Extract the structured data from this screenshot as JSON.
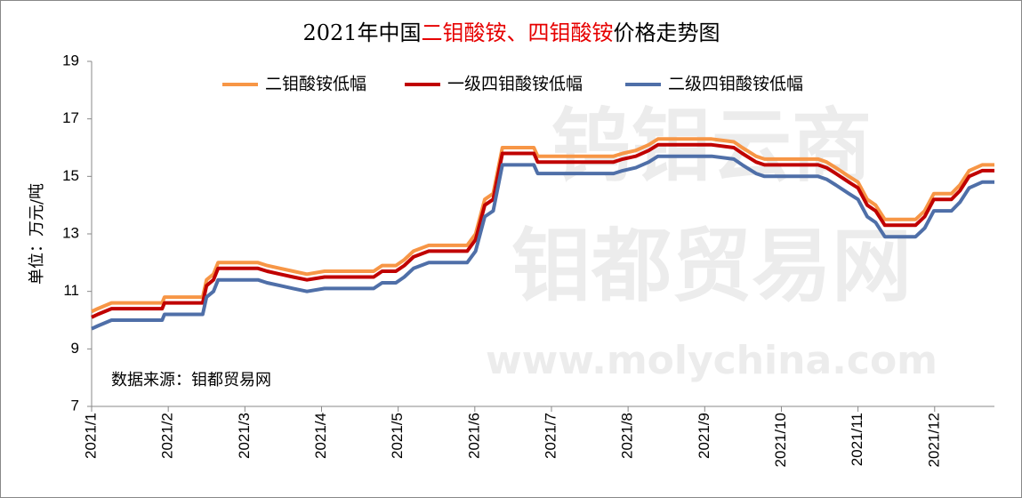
{
  "chart_data": {
    "type": "line",
    "title": [
      {
        "text": "2021年中国",
        "color": "#000000"
      },
      {
        "text": "二钼酸铵、四钼酸铵",
        "color": "#e60000"
      },
      {
        "text": "价格走势图",
        "color": "#000000"
      }
    ],
    "y_label": "单位：万元/吨",
    "source": "数据来源：钼都贸易网",
    "watermark": [
      "钨钼云商",
      "钼都贸易网",
      "www.molychina.com"
    ],
    "legend": "top",
    "grid": false,
    "xlim": [
      1,
      12.78
    ],
    "xticks": [
      {
        "value": 1,
        "label": "2021/1"
      },
      {
        "value": 2,
        "label": "2021/2"
      },
      {
        "value": 3,
        "label": "2021/3"
      },
      {
        "value": 4,
        "label": "2021/4"
      },
      {
        "value": 5,
        "label": "2021/5"
      },
      {
        "value": 6,
        "label": "2021/6"
      },
      {
        "value": 7,
        "label": "2021/7"
      },
      {
        "value": 8,
        "label": "2021/8"
      },
      {
        "value": 9,
        "label": "2021/9"
      },
      {
        "value": 10,
        "label": "2021/10"
      },
      {
        "value": 11,
        "label": "2021/11"
      },
      {
        "value": 12,
        "label": "2021/12"
      }
    ],
    "ylim": [
      7,
      19
    ],
    "yticks": [
      7,
      9,
      11,
      13,
      15,
      17,
      19
    ],
    "x": [
      1.0,
      1.08,
      1.26,
      1.92,
      1.95,
      2.45,
      2.5,
      2.59,
      2.65,
      3.17,
      3.29,
      3.46,
      3.63,
      3.81,
      4.04,
      4.68,
      4.79,
      4.97,
      5.08,
      5.2,
      5.4,
      5.9,
      6.01,
      6.13,
      6.24,
      6.36,
      6.77,
      6.82,
      7.81,
      7.93,
      8.1,
      8.27,
      8.39,
      9.09,
      9.38,
      9.49,
      9.67,
      9.78,
      10.48,
      10.59,
      10.71,
      10.88,
      11.0,
      11.12,
      11.23,
      11.35,
      11.75,
      11.87,
      11.99,
      12.22,
      12.33,
      12.45,
      12.62,
      12.78
    ],
    "series": [
      {
        "name": "二钼酸铵低幅",
        "color": "#f79646",
        "values": [
          10.3,
          10.4,
          10.6,
          10.6,
          10.8,
          10.8,
          11.4,
          11.6,
          12.0,
          12.0,
          11.9,
          11.8,
          11.7,
          11.6,
          11.7,
          11.7,
          11.9,
          11.9,
          12.1,
          12.4,
          12.6,
          12.6,
          13.0,
          14.2,
          14.4,
          16.0,
          16.0,
          15.7,
          15.7,
          15.8,
          15.9,
          16.1,
          16.3,
          16.3,
          16.2,
          16.0,
          15.7,
          15.6,
          15.6,
          15.5,
          15.3,
          15.0,
          14.8,
          14.2,
          14.0,
          13.5,
          13.5,
          13.8,
          14.4,
          14.4,
          14.7,
          15.2,
          15.4,
          15.4
        ]
      },
      {
        "name": "一级四钼酸铵低幅",
        "color": "#c00000",
        "values": [
          10.1,
          10.2,
          10.4,
          10.4,
          10.6,
          10.6,
          11.2,
          11.4,
          11.8,
          11.8,
          11.7,
          11.6,
          11.5,
          11.4,
          11.5,
          11.5,
          11.7,
          11.7,
          11.9,
          12.2,
          12.4,
          12.4,
          12.8,
          14.0,
          14.2,
          15.8,
          15.8,
          15.5,
          15.5,
          15.6,
          15.7,
          15.9,
          16.1,
          16.1,
          16.0,
          15.8,
          15.5,
          15.4,
          15.4,
          15.3,
          15.1,
          14.8,
          14.6,
          14.0,
          13.8,
          13.3,
          13.3,
          13.6,
          14.2,
          14.2,
          14.5,
          15.0,
          15.2,
          15.2
        ]
      },
      {
        "name": "二级四钼酸铵低幅",
        "color": "#4f6fa8",
        "values": [
          9.7,
          9.8,
          10.0,
          10.0,
          10.2,
          10.2,
          10.8,
          11.0,
          11.4,
          11.4,
          11.3,
          11.2,
          11.1,
          11.0,
          11.1,
          11.1,
          11.3,
          11.3,
          11.5,
          11.8,
          12.0,
          12.0,
          12.4,
          13.6,
          13.8,
          15.4,
          15.4,
          15.1,
          15.1,
          15.2,
          15.3,
          15.5,
          15.7,
          15.7,
          15.6,
          15.4,
          15.1,
          15.0,
          15.0,
          14.9,
          14.7,
          14.4,
          14.2,
          13.6,
          13.4,
          12.9,
          12.9,
          13.2,
          13.8,
          13.8,
          14.1,
          14.6,
          14.8,
          14.8
        ]
      }
    ]
  }
}
